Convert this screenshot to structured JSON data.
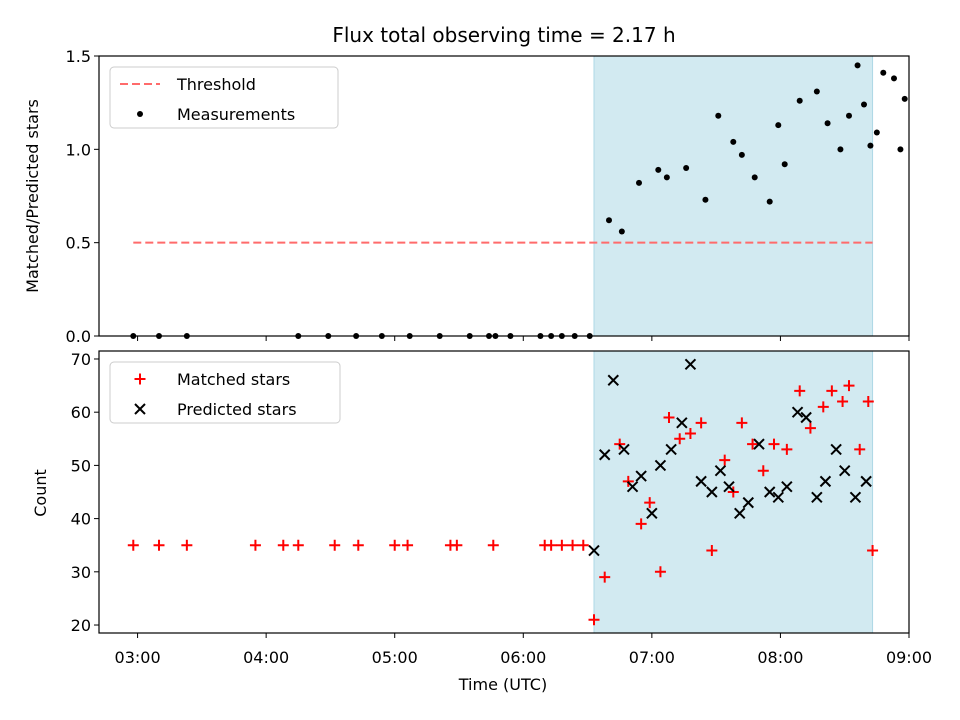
{
  "chart_data": [
    {
      "type": "scatter",
      "title": "Flux total observing time = 2.17 h",
      "xlabel": "",
      "ylabel": "Matched/Predicted stars",
      "xlim": [
        "02:42",
        "09:00"
      ],
      "ylim": [
        0,
        1.5
      ],
      "yticks": [
        0.0,
        0.5,
        1.0,
        1.5
      ],
      "ytick_labels": [
        "0.0",
        "0.5",
        "1.0",
        "1.5"
      ],
      "shaded_span": {
        "start": "06:33",
        "end": "08:43",
        "color": "#add8e6"
      },
      "legend": {
        "location": "upper-left",
        "entries": [
          "Threshold",
          "Measurements"
        ]
      },
      "series": [
        {
          "name": "Threshold",
          "style": "dashed-line",
          "color": "#ff6b6b",
          "x": [
            "02:58",
            "08:43"
          ],
          "y": [
            0.5,
            0.5
          ]
        },
        {
          "name": "Measurements",
          "style": "dot",
          "color": "#000000",
          "x": [
            "02:58",
            "03:10",
            "03:23",
            "04:15",
            "04:29",
            "04:42",
            "04:54",
            "05:07",
            "05:21",
            "05:35",
            "05:44",
            "05:47",
            "05:54",
            "06:08",
            "06:13",
            "06:18",
            "06:24",
            "06:31",
            "06:40",
            "06:46",
            "06:54",
            "07:03",
            "07:07",
            "07:16",
            "07:25",
            "07:31",
            "07:38",
            "07:42",
            "07:48",
            "07:55",
            "07:59",
            "08:02",
            "08:09",
            "08:17",
            "08:22",
            "08:28",
            "08:32",
            "08:36",
            "08:39",
            "08:42",
            "08:45",
            "08:48",
            "08:53",
            "08:56",
            "08:58"
          ],
          "y": [
            0,
            0,
            0,
            0,
            0,
            0,
            0,
            0,
            0,
            0,
            0,
            0,
            0,
            0,
            0,
            0,
            0,
            0,
            0.62,
            0.56,
            0.82,
            0.89,
            0.85,
            0.9,
            0.73,
            1.18,
            1.04,
            0.97,
            0.85,
            0.72,
            1.13,
            0.92,
            1.26,
            1.31,
            1.14,
            1.0,
            1.18,
            1.45,
            1.24,
            1.02,
            1.09,
            1.41,
            1.38,
            1.0,
            1.27
          ]
        }
      ]
    },
    {
      "type": "scatter",
      "title": "",
      "xlabel": "Time (UTC)",
      "ylabel": "Count",
      "xlim": [
        "02:42",
        "09:00"
      ],
      "ylim": [
        18.5,
        71.5
      ],
      "yticks": [
        20,
        30,
        40,
        50,
        60,
        70
      ],
      "ytick_labels": [
        "20",
        "30",
        "40",
        "50",
        "60",
        "70"
      ],
      "xticks": [
        "03:00",
        "04:00",
        "05:00",
        "06:00",
        "07:00",
        "08:00",
        "09:00"
      ],
      "shaded_span": {
        "start": "06:33",
        "end": "08:43",
        "color": "#add8e6"
      },
      "legend": {
        "location": "upper-left",
        "entries": [
          "Matched stars",
          "Predicted stars"
        ]
      },
      "series": [
        {
          "name": "Matched stars",
          "marker": "plus",
          "color": "#ff0000",
          "x": [
            "02:58",
            "03:10",
            "03:23",
            "03:55",
            "04:08",
            "04:15",
            "04:32",
            "04:43",
            "05:00",
            "05:06",
            "05:26",
            "05:29",
            "05:46",
            "06:10",
            "06:13",
            "06:18",
            "06:23",
            "06:28",
            "06:33",
            "06:38",
            "06:45",
            "06:49",
            "06:55",
            "06:59",
            "07:04",
            "07:08",
            "07:13",
            "07:18",
            "07:23",
            "07:28",
            "07:34",
            "07:38",
            "07:42",
            "07:47",
            "07:52",
            "07:57",
            "08:03",
            "08:09",
            "08:14",
            "08:20",
            "08:24",
            "08:29",
            "08:32",
            "08:37",
            "08:41",
            "08:43"
          ],
          "y": [
            35,
            35,
            35,
            35,
            35,
            35,
            35,
            35,
            35,
            35,
            35,
            35,
            35,
            35,
            35,
            35,
            35,
            35,
            21,
            29,
            54,
            47,
            39,
            43,
            30,
            59,
            55,
            56,
            58,
            34,
            51,
            45,
            58,
            54,
            49,
            54,
            53,
            64,
            57,
            61,
            64,
            62,
            65,
            53,
            62,
            34
          ]
        },
        {
          "name": "Predicted stars",
          "marker": "cross",
          "color": "#000000",
          "x": [
            "06:33",
            "06:38",
            "06:42",
            "06:47",
            "06:51",
            "06:55",
            "07:00",
            "07:04",
            "07:09",
            "07:14",
            "07:18",
            "07:23",
            "07:28",
            "07:32",
            "07:36",
            "07:41",
            "07:45",
            "07:50",
            "07:55",
            "07:59",
            "08:03",
            "08:08",
            "08:12",
            "08:17",
            "08:21",
            "08:26",
            "08:30",
            "08:35",
            "08:40"
          ],
          "y": [
            34,
            52,
            66,
            53,
            46,
            48,
            41,
            50,
            53,
            58,
            69,
            47,
            45,
            49,
            46,
            41,
            43,
            54,
            45,
            44,
            46,
            60,
            59,
            44,
            47,
            53,
            49,
            44,
            47
          ]
        }
      ]
    }
  ]
}
